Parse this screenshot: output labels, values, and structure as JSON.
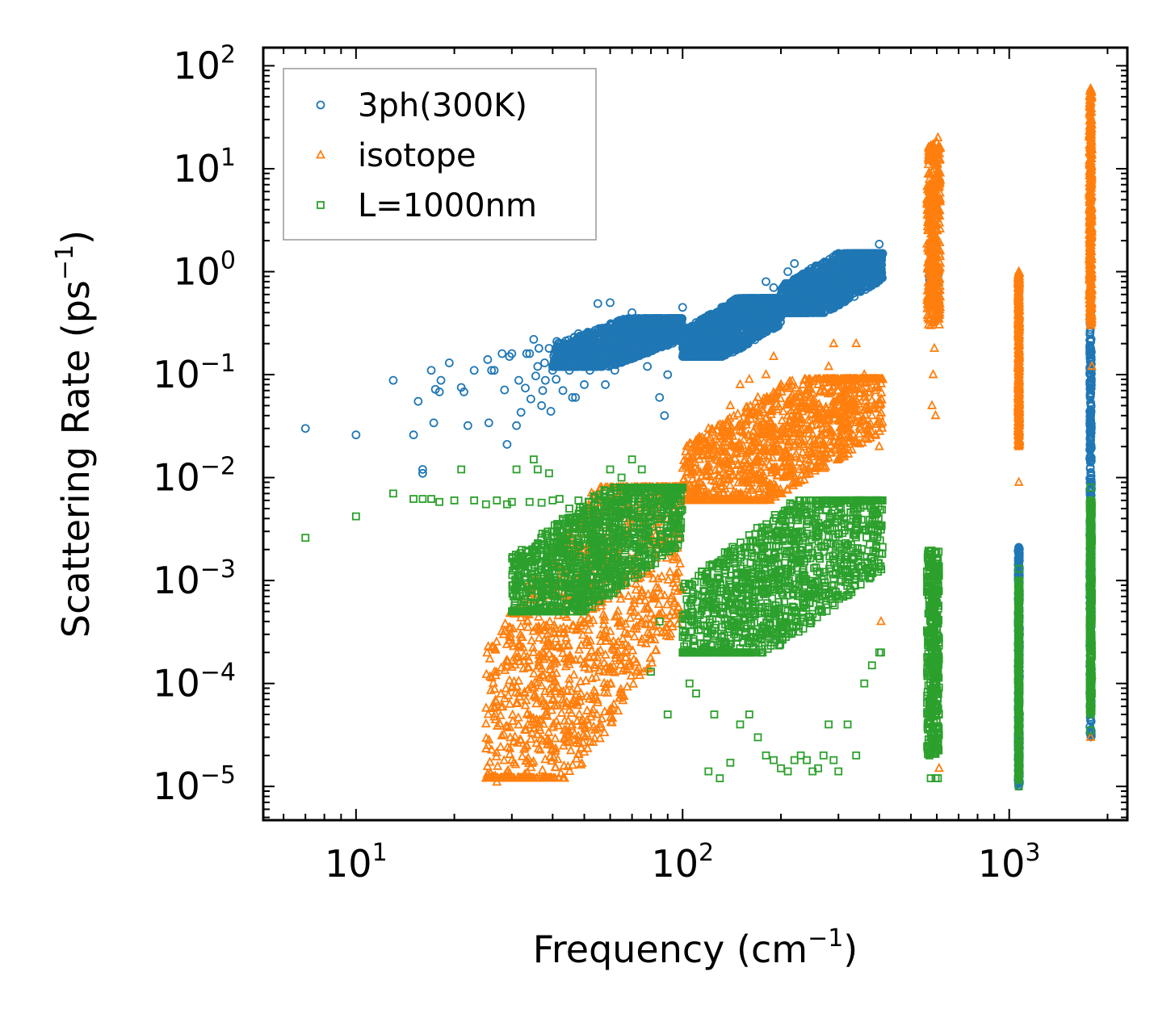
{
  "chart_data": {
    "type": "scatter",
    "xscale": "log",
    "yscale": "log",
    "xlim": [
      5.2,
      2300
    ],
    "ylim": [
      4.7e-06,
      150
    ],
    "xlabel": "Frequency (cm",
    "xlabel_sup": "−1",
    "xlabel_end": ")",
    "ylabel": "Scattering Rate (ps",
    "ylabel_sup": "−1",
    "ylabel_end": ")",
    "x_ticks": [
      {
        "value": 10,
        "base": "10",
        "exp": "1"
      },
      {
        "value": 100,
        "base": "10",
        "exp": "2"
      },
      {
        "value": 1000,
        "base": "10",
        "exp": "3"
      }
    ],
    "y_ticks": [
      {
        "value": 100,
        "base": "10",
        "exp": "2"
      },
      {
        "value": 10,
        "base": "10",
        "exp": "1"
      },
      {
        "value": 1,
        "base": "10",
        "exp": "0"
      },
      {
        "value": 0.1,
        "base": "10",
        "exp": "−1"
      },
      {
        "value": 0.01,
        "base": "10",
        "exp": "−2"
      },
      {
        "value": 0.001,
        "base": "10",
        "exp": "−3"
      },
      {
        "value": 0.0001,
        "base": "10",
        "exp": "−4"
      },
      {
        "value": 1e-05,
        "base": "10",
        "exp": "−5"
      }
    ],
    "legend_position": "top-left",
    "series": [
      {
        "name": "3ph(300K)",
        "marker": "circle",
        "color": "#1f77b4",
        "points": [
          [
            7,
            0.03
          ],
          [
            10,
            0.026
          ],
          [
            13,
            0.088
          ],
          [
            15,
            0.026
          ],
          [
            15.5,
            0.055
          ],
          [
            16,
            0.011
          ],
          [
            16,
            0.012
          ],
          [
            17,
            0.11
          ],
          [
            17.3,
            0.034
          ],
          [
            17.5,
            0.072
          ],
          [
            18,
            0.068
          ],
          [
            18.2,
            0.088
          ],
          [
            19.3,
            0.13
          ],
          [
            21,
            0.075
          ],
          [
            21.4,
            0.068
          ],
          [
            22,
            0.032
          ],
          [
            23,
            0.11
          ],
          [
            25.5,
            0.034
          ],
          [
            25.3,
            0.14
          ],
          [
            26,
            0.11
          ],
          [
            26.5,
            0.11
          ],
          [
            28,
            0.16
          ],
          [
            28.5,
            0.071
          ],
          [
            29,
            0.021
          ],
          [
            29.5,
            0.15
          ],
          [
            30,
            0.16
          ],
          [
            31,
            0.032
          ],
          [
            31.5,
            0.088
          ],
          [
            32,
            0.043
          ],
          [
            33,
            0.074
          ],
          [
            33.3,
            0.16
          ],
          [
            34,
            0.16
          ],
          [
            34.3,
            0.058
          ],
          [
            35,
            0.22
          ],
          [
            35.5,
            0.097
          ],
          [
            36,
            0.12
          ],
          [
            36.3,
            0.18
          ],
          [
            37,
            0.05
          ],
          [
            37.3,
            0.07
          ],
          [
            37.8,
            0.13
          ],
          [
            38,
            0.088
          ],
          [
            39,
            0.18
          ],
          [
            39.5,
            0.044
          ],
          [
            40,
            0.11
          ],
          [
            41,
            0.09
          ],
          [
            41.2,
            0.21
          ],
          [
            42,
            0.18
          ],
          [
            43,
            0.07
          ],
          [
            44,
            0.16
          ],
          [
            45,
            0.11
          ],
          [
            46,
            0.06
          ],
          [
            47,
            0.06
          ],
          [
            48,
            0.25
          ],
          [
            50,
            0.08
          ],
          [
            52,
            0.11
          ],
          [
            55,
            0.49
          ],
          [
            56,
            0.18
          ],
          [
            58,
            0.08
          ],
          [
            60,
            0.5
          ],
          [
            62,
            0.11
          ],
          [
            65,
            0.15
          ],
          [
            68,
            0.3
          ],
          [
            70,
            0.4
          ],
          [
            75,
            0.32
          ],
          [
            78,
            0.12
          ],
          [
            80,
            0.34
          ],
          [
            83,
            0.22
          ],
          [
            85,
            0.06
          ],
          [
            88,
            0.04
          ],
          [
            90,
            0.1
          ],
          [
            95,
            0.3
          ],
          [
            100,
            0.45
          ],
          [
            110,
            0.3
          ],
          [
            120,
            0.35
          ],
          [
            130,
            0.38
          ],
          [
            140,
            0.5
          ],
          [
            150,
            0.4
          ],
          [
            160,
            0.45
          ],
          [
            170,
            0.5
          ],
          [
            180,
            0.8
          ],
          [
            190,
            0.7
          ],
          [
            200,
            0.6
          ],
          [
            210,
            1.0
          ],
          [
            220,
            1.2
          ],
          [
            230,
            0.9
          ],
          [
            250,
            1.0
          ],
          [
            270,
            0.7
          ],
          [
            280,
            0.9
          ],
          [
            300,
            1.5
          ],
          [
            320,
            1.3
          ],
          [
            350,
            0.8
          ],
          [
            380,
            1.2
          ],
          [
            400,
            1.85
          ],
          [
            405,
            1.0
          ],
          [
            575,
            1.6
          ],
          [
            580,
            0.75
          ],
          [
            590,
            0.8
          ],
          [
            600,
            1.0
          ],
          [
            605,
            0.85
          ],
          [
            1070,
            0.0021
          ],
          [
            1070,
            0.0009
          ],
          [
            1070,
            0.00012
          ],
          [
            1775,
            0.4
          ],
          [
            1775,
            0.1
          ],
          [
            1775,
            0.003
          ],
          [
            1775,
            5e-05
          ],
          [
            1775,
            3.2e-05
          ]
        ],
        "dense_segments": [
          {
            "x_min": 40,
            "x_max": 100,
            "y_min": 0.12,
            "y_max": 0.35
          },
          {
            "x_min": 100,
            "x_max": 200,
            "y_min": 0.15,
            "y_max": 0.55
          },
          {
            "x_min": 200,
            "x_max": 410,
            "y_min": 0.4,
            "y_max": 1.5
          },
          {
            "x_min": 570,
            "x_max": 605,
            "y_min": 0.75,
            "y_max": 1.1
          },
          {
            "x_min": 1065,
            "x_max": 1075,
            "y_min": 1e-05,
            "y_max": 0.0021
          },
          {
            "x_min": 1765,
            "x_max": 1785,
            "y_min": 3e-05,
            "y_max": 0.4
          }
        ]
      },
      {
        "name": "isotope",
        "marker": "triangle",
        "color": "#ff7f0e",
        "points": [
          [
            25,
            1.2e-05
          ],
          [
            27,
            1.1e-05
          ],
          [
            28,
            1.2e-05
          ],
          [
            30,
            1.8e-05
          ],
          [
            32,
            2.8e-05
          ],
          [
            35,
            4.5e-05
          ],
          [
            38,
            6e-05
          ],
          [
            40,
            7e-05
          ],
          [
            45,
            0.00011
          ],
          [
            50,
            0.00016
          ],
          [
            55,
            0.0002
          ],
          [
            60,
            0.00032
          ],
          [
            65,
            0.0004
          ],
          [
            70,
            0.00055
          ],
          [
            75,
            0.0008
          ],
          [
            80,
            0.0013
          ],
          [
            85,
            0.0025
          ],
          [
            90,
            0.004
          ],
          [
            100,
            0.008
          ],
          [
            110,
            0.02
          ],
          [
            120,
            0.03
          ],
          [
            130,
            0.025
          ],
          [
            140,
            0.05
          ],
          [
            150,
            0.08
          ],
          [
            160,
            0.09
          ],
          [
            170,
            0.06
          ],
          [
            180,
            0.1
          ],
          [
            190,
            0.15
          ],
          [
            200,
            0.08
          ],
          [
            210,
            0.03
          ],
          [
            220,
            0.02
          ],
          [
            240,
            0.05
          ],
          [
            260,
            0.08
          ],
          [
            280,
            0.12
          ],
          [
            290,
            0.2
          ],
          [
            300,
            0.06
          ],
          [
            320,
            0.03
          ],
          [
            340,
            0.2
          ],
          [
            360,
            0.1
          ],
          [
            380,
            0.04
          ],
          [
            400,
            0.02
          ],
          [
            405,
            0.0004
          ],
          [
            570,
            4
          ],
          [
            570,
            0.5
          ],
          [
            575,
            0.3
          ],
          [
            580,
            0.05
          ],
          [
            585,
            0.1
          ],
          [
            590,
            0.18
          ],
          [
            595,
            0.04
          ],
          [
            600,
            18
          ],
          [
            605,
            20
          ],
          [
            610,
            1.5e-05
          ],
          [
            1070,
            1.0
          ],
          [
            1070,
            0.3
          ],
          [
            1070,
            0.05
          ],
          [
            1070,
            0.03
          ],
          [
            1070,
            0.02
          ],
          [
            1070,
            0.009
          ],
          [
            1775,
            60
          ],
          [
            1775,
            30
          ],
          [
            1775,
            5
          ],
          [
            1775,
            1
          ],
          [
            1775,
            0.3
          ],
          [
            1790,
            0.12
          ],
          [
            1790,
            0.00012
          ],
          [
            1775,
            3e-05
          ]
        ],
        "dense_segments": [
          {
            "x_min": 25,
            "x_max": 100,
            "y_min": 1.2e-05,
            "y_max": 0.008
          },
          {
            "x_min": 100,
            "x_max": 410,
            "y_min": 0.006,
            "y_max": 0.09
          },
          {
            "x_min": 560,
            "x_max": 615,
            "y_min": 0.3,
            "y_max": 18
          },
          {
            "x_min": 1065,
            "x_max": 1075,
            "y_min": 0.02,
            "y_max": 1.0
          },
          {
            "x_min": 1760,
            "x_max": 1790,
            "y_min": 0.3,
            "y_max": 60
          }
        ]
      },
      {
        "name": "L=1000nm",
        "marker": "square",
        "color": "#2ca02c",
        "points": [
          [
            7,
            0.0026
          ],
          [
            10,
            0.0042
          ],
          [
            13,
            0.007
          ],
          [
            15,
            0.0062
          ],
          [
            16,
            0.0062
          ],
          [
            17,
            0.0062
          ],
          [
            18,
            0.0058
          ],
          [
            20,
            0.006
          ],
          [
            21,
            0.012
          ],
          [
            23,
            0.006
          ],
          [
            25,
            0.0055
          ],
          [
            27,
            0.006
          ],
          [
            29,
            0.0055
          ],
          [
            30,
            0.0058
          ],
          [
            31,
            0.012
          ],
          [
            33,
            0.0015
          ],
          [
            34,
            0.0058
          ],
          [
            35,
            0.015
          ],
          [
            36,
            0.012
          ],
          [
            37,
            0.0057
          ],
          [
            39,
            0.011
          ],
          [
            40,
            0.006
          ],
          [
            42,
            0.0062
          ],
          [
            45,
            0.005
          ],
          [
            48,
            0.006
          ],
          [
            50,
            0.0006
          ],
          [
            52,
            0.0007
          ],
          [
            55,
            0.0007
          ],
          [
            58,
            0.007
          ],
          [
            60,
            0.012
          ],
          [
            65,
            0.01
          ],
          [
            70,
            0.015
          ],
          [
            75,
            0.012
          ],
          [
            80,
            0.00013
          ],
          [
            85,
            0.0004
          ],
          [
            90,
            5e-05
          ],
          [
            95,
            0.004
          ],
          [
            100,
            0.0002
          ],
          [
            105,
            0.0001
          ],
          [
            110,
            8e-05
          ],
          [
            120,
            1.4e-05
          ],
          [
            125,
            5e-05
          ],
          [
            130,
            1.2e-05
          ],
          [
            140,
            1.7e-05
          ],
          [
            150,
            4e-05
          ],
          [
            160,
            5e-05
          ],
          [
            170,
            3e-05
          ],
          [
            180,
            2e-05
          ],
          [
            190,
            1.8e-05
          ],
          [
            200,
            1.5e-05
          ],
          [
            210,
            1.4e-05
          ],
          [
            220,
            1.8e-05
          ],
          [
            230,
            2e-05
          ],
          [
            240,
            1.8e-05
          ],
          [
            250,
            1.4e-05
          ],
          [
            260,
            1.5e-05
          ],
          [
            270,
            2e-05
          ],
          [
            280,
            4e-05
          ],
          [
            290,
            1.8e-05
          ],
          [
            300,
            1.4e-05
          ],
          [
            320,
            4e-05
          ],
          [
            340,
            2e-05
          ],
          [
            360,
            0.0001
          ],
          [
            380,
            0.00015
          ],
          [
            400,
            0.0002
          ],
          [
            405,
            0.0002
          ],
          [
            565,
            0.0016
          ],
          [
            570,
            2e-05
          ],
          [
            575,
            1.2e-05
          ],
          [
            580,
            0.0002
          ],
          [
            585,
            0.0005
          ],
          [
            590,
            0.0001
          ],
          [
            595,
            1.2e-05
          ],
          [
            600,
            0.0002
          ],
          [
            605,
            1.2e-05
          ],
          [
            1070,
            0.0013
          ],
          [
            1070,
            4e-05
          ],
          [
            1070,
            1.2e-05
          ],
          [
            1070,
            1e-05
          ],
          [
            1775,
            0.008
          ],
          [
            1775,
            0.0006
          ],
          [
            1775,
            0.0001
          ],
          [
            1775,
            3.5e-05
          ],
          [
            1790,
            0.00075
          ],
          [
            1790,
            8e-05
          ]
        ],
        "dense_segments": [
          {
            "x_min": 30,
            "x_max": 100,
            "y_min": 0.0005,
            "y_max": 0.008
          },
          {
            "x_min": 100,
            "x_max": 410,
            "y_min": 0.0002,
            "y_max": 0.006
          },
          {
            "x_min": 560,
            "x_max": 610,
            "y_min": 2e-05,
            "y_max": 0.002
          },
          {
            "x_min": 1065,
            "x_max": 1075,
            "y_min": 1.2e-05,
            "y_max": 0.001
          },
          {
            "x_min": 1765,
            "x_max": 1790,
            "y_min": 5e-05,
            "y_max": 0.006
          }
        ]
      }
    ]
  }
}
